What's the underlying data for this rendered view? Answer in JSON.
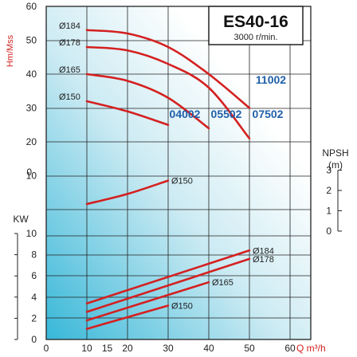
{
  "chart_data": {
    "type": "line",
    "title": "ES40-16",
    "subtitle": "3000 r/min.",
    "x_axis": {
      "label": "Q m³/h",
      "range": [
        0,
        65
      ],
      "ticks": [
        "0",
        "10",
        "15",
        "20",
        "30",
        "40",
        "50",
        "60"
      ]
    },
    "head_panel": {
      "ylabel": "Hm/Mss",
      "ylim": [
        0,
        60
      ],
      "ticks": [
        "60",
        "50",
        "40",
        "30",
        "20",
        "10"
      ],
      "series": [
        {
          "name": "Ø184",
          "x": [
            10,
            20,
            30,
            40,
            50
          ],
          "y": [
            53,
            52,
            48,
            40,
            30
          ]
        },
        {
          "name": "Ø178",
          "x": [
            10,
            20,
            30,
            40,
            50
          ],
          "y": [
            48,
            47,
            43,
            36,
            21
          ]
        },
        {
          "name": "Ø165",
          "x": [
            10,
            20,
            30,
            40
          ],
          "y": [
            40,
            38,
            33,
            24
          ]
        },
        {
          "name": "Ø150",
          "x": [
            10,
            20,
            30
          ],
          "y": [
            32,
            29,
            25
          ]
        }
      ],
      "model_labels": [
        "11002",
        "04002",
        "05502",
        "07502"
      ]
    },
    "npsh_panel": {
      "ylabel": "NPSH (m)",
      "ticks": [
        "3",
        "2",
        "1",
        "0"
      ],
      "left_tick": "0",
      "series": [
        {
          "name": "Ø150",
          "x": [
            10,
            20,
            30
          ],
          "y": [
            1.0,
            1.6,
            2.4
          ]
        }
      ]
    },
    "power_panel": {
      "ylabel": "KW",
      "ylim": [
        0,
        10
      ],
      "ticks": [
        "10",
        "8",
        "6",
        "4",
        "2",
        "0"
      ],
      "series": [
        {
          "name": "Ø184",
          "x": [
            10,
            50
          ],
          "y": [
            3.4,
            8.4
          ]
        },
        {
          "name": "Ø178",
          "x": [
            10,
            50
          ],
          "y": [
            2.6,
            7.6
          ]
        },
        {
          "name": "Ø165",
          "x": [
            10,
            40
          ],
          "y": [
            1.8,
            5.4
          ]
        },
        {
          "name": "Ø150",
          "x": [
            10,
            30
          ],
          "y": [
            1.0,
            3.2
          ]
        }
      ]
    },
    "colors": {
      "curve": "#d42020",
      "grid": "#222222",
      "model": "#1f5fa8",
      "axis_title": "#d42020"
    }
  }
}
